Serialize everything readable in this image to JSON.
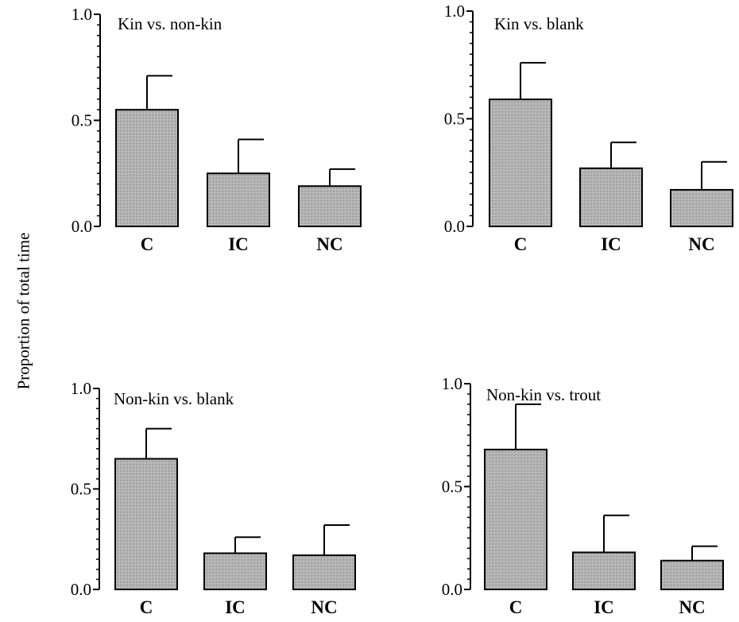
{
  "figure": {
    "ylabel": "Proportion of total time"
  },
  "chart_data": [
    {
      "type": "bar",
      "title": "Kin vs. non-kin",
      "categories": [
        "C",
        "IC",
        "NC"
      ],
      "values": [
        0.55,
        0.25,
        0.19
      ],
      "errors": [
        0.16,
        0.16,
        0.08
      ],
      "yticks": [
        "0.0",
        "0.5",
        "1.0"
      ],
      "ylim": [
        0,
        1.0
      ]
    },
    {
      "type": "bar",
      "title": "Kin vs. blank",
      "categories": [
        "C",
        "IC",
        "NC"
      ],
      "values": [
        0.59,
        0.27,
        0.17
      ],
      "errors": [
        0.17,
        0.12,
        0.13
      ],
      "yticks": [
        "0.0",
        "0.5",
        "1.0"
      ],
      "ylim": [
        0,
        1.0
      ]
    },
    {
      "type": "bar",
      "title": "Non-kin vs. blank",
      "categories": [
        "C",
        "IC",
        "NC"
      ],
      "values": [
        0.65,
        0.18,
        0.17
      ],
      "errors": [
        0.15,
        0.08,
        0.15
      ],
      "yticks": [
        "0.0",
        "0.5",
        "1.0"
      ],
      "ylim": [
        0,
        1.0
      ]
    },
    {
      "type": "bar",
      "title": "Non-kin vs. trout",
      "categories": [
        "C",
        "IC",
        "NC"
      ],
      "values": [
        0.68,
        0.18,
        0.14
      ],
      "errors": [
        0.22,
        0.18,
        0.07
      ],
      "yticks": [
        "0.0",
        "0.5",
        "1.0"
      ],
      "ylim": [
        0,
        1.0
      ]
    }
  ]
}
